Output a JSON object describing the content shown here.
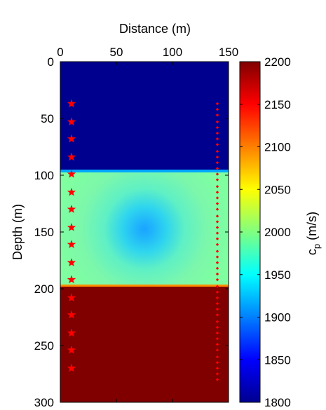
{
  "chart_data": [
    {
      "type": "heatmap",
      "title": "",
      "xlabel": "Distance (m)",
      "ylabel": "Depth (m)",
      "xlim": [
        0,
        150
      ],
      "ylim": [
        0,
        300
      ],
      "y_reversed": true,
      "x_axis_position": "top",
      "xticks": [
        0,
        50,
        100,
        150
      ],
      "yticks": [
        0,
        50,
        100,
        150,
        200,
        250,
        300
      ],
      "colormap": "jet",
      "color_range": [
        1800,
        2200
      ],
      "layers": [
        {
          "depth_from": 0,
          "depth_to": 100,
          "cp": 1800
        },
        {
          "depth_from": 100,
          "depth_to": 200,
          "cp": 2000
        },
        {
          "depth_from": 200,
          "depth_to": 300,
          "cp": 2200
        }
      ],
      "anomaly": {
        "x": 75,
        "y": 150,
        "cp_min": 1925,
        "radius": 50
      },
      "sources": {
        "marker": "star",
        "color": "#ff0000",
        "x": 10,
        "depths": [
          37,
          53,
          68,
          84,
          99,
          115,
          130,
          146,
          161,
          177,
          192,
          208,
          223,
          239,
          254,
          270
        ]
      },
      "receivers": {
        "marker": "dot",
        "color": "#ff0000",
        "x": 140,
        "depths": [
          37,
          42,
          47,
          53,
          58,
          63,
          68,
          73,
          79,
          84,
          89,
          94,
          99,
          104,
          110,
          115,
          120,
          125,
          130,
          136,
          141,
          146,
          151,
          156,
          161,
          167,
          172,
          177,
          182,
          187,
          192,
          198,
          203,
          208,
          213,
          218,
          223,
          229,
          234,
          239,
          244,
          249,
          254,
          260,
          265,
          270,
          275,
          280
        ]
      }
    },
    {
      "type": "colorbar",
      "label": "c_p (m/s)",
      "label_base": "c",
      "label_sub": "p",
      "label_units": " (m/s)",
      "range": [
        1800,
        2200
      ],
      "ticks": [
        1800,
        1850,
        1900,
        1950,
        2000,
        2050,
        2100,
        2150,
        2200
      ],
      "colormap": "jet"
    }
  ]
}
